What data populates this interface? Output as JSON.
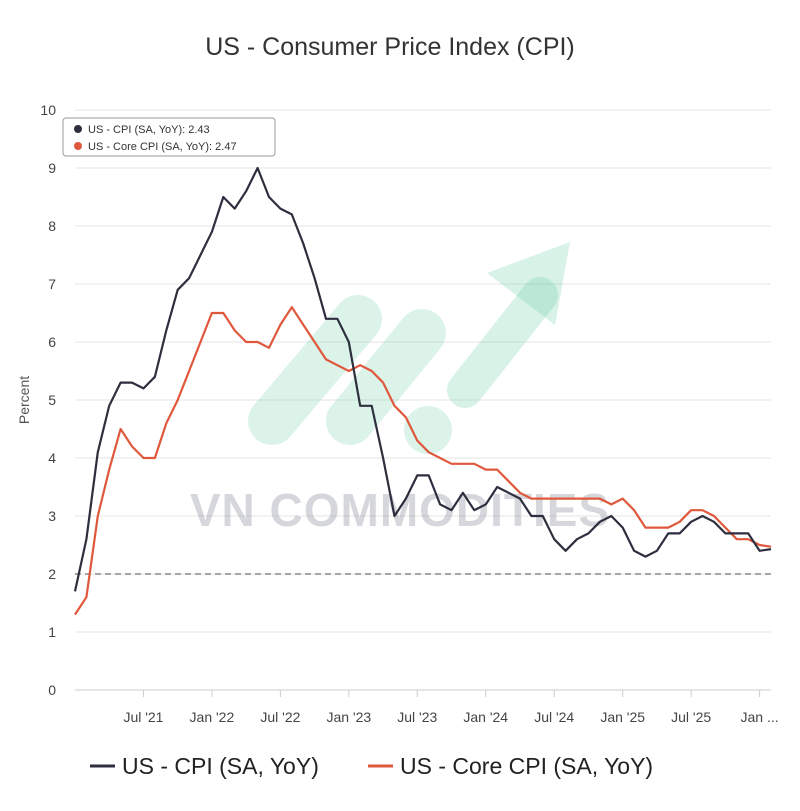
{
  "chart_data": {
    "type": "line",
    "title": "US - Consumer Price Index (CPI)",
    "xlabel": "",
    "ylabel": "Percent",
    "ylim": [
      0,
      10
    ],
    "yticks": [
      "0",
      "1",
      "2",
      "3",
      "4",
      "5",
      "6",
      "7",
      "8",
      "9",
      "10"
    ],
    "xticks": [
      "Jul '21",
      "Jan '22",
      "Jul '22",
      "Jan '23",
      "Jul '23",
      "Jan '24",
      "Jul '24",
      "Jan '25",
      "Jul '25",
      "Jan ..."
    ],
    "xtick_index": [
      6,
      12,
      18,
      24,
      30,
      36,
      42,
      48,
      54,
      60
    ],
    "reference_line": {
      "value": 2,
      "style": "dashed"
    },
    "x": [
      "Jan '21",
      "Feb '21",
      "Mar '21",
      "Apr '21",
      "May '21",
      "Jun '21",
      "Jul '21",
      "Aug '21",
      "Sep '21",
      "Oct '21",
      "Nov '21",
      "Dec '21",
      "Jan '22",
      "Feb '22",
      "Mar '22",
      "Apr '22",
      "May '22",
      "Jun '22",
      "Jul '22",
      "Aug '22",
      "Sep '22",
      "Oct '22",
      "Nov '22",
      "Dec '22",
      "Jan '23",
      "Feb '23",
      "Mar '23",
      "Apr '23",
      "May '23",
      "Jun '23",
      "Jul '23",
      "Aug '23",
      "Sep '23",
      "Oct '23",
      "Nov '23",
      "Dec '23",
      "Jan '24",
      "Feb '24",
      "Mar '24",
      "Apr '24",
      "May '24",
      "Jun '24",
      "Jul '24",
      "Aug '24",
      "Sep '24",
      "Oct '24",
      "Nov '24",
      "Dec '24",
      "Jan '25",
      "Feb '25",
      "Mar '25",
      "Apr '25",
      "May '25",
      "Jun '25",
      "Jul '25",
      "Aug '25",
      "Sep '25",
      "Oct '25",
      "Nov '25",
      "Dec '25",
      "Jan '26",
      "Feb '26"
    ],
    "series": [
      {
        "name": "US - CPI (SA, YoY)",
        "color": "#2d2f3e",
        "values": [
          1.7,
          2.6,
          4.1,
          4.9,
          5.3,
          5.3,
          5.2,
          5.4,
          6.2,
          6.9,
          7.1,
          7.5,
          7.9,
          8.5,
          8.3,
          8.6,
          9.0,
          8.5,
          8.3,
          8.2,
          7.7,
          7.1,
          6.4,
          6.4,
          6.0,
          4.9,
          4.9,
          4.0,
          3.0,
          3.3,
          3.7,
          3.7,
          3.2,
          3.1,
          3.4,
          3.1,
          3.2,
          3.5,
          3.4,
          3.3,
          3.0,
          3.0,
          2.6,
          2.4,
          2.6,
          2.7,
          2.9,
          3.0,
          2.8,
          2.4,
          2.3,
          2.4,
          2.7,
          2.7,
          2.9,
          3.0,
          2.9,
          2.7,
          2.7,
          2.7,
          2.4,
          2.43
        ]
      },
      {
        "name": "US - Core CPI (SA, YoY)",
        "color": "#e0583c",
        "values": [
          1.3,
          1.6,
          3.0,
          3.8,
          4.5,
          4.2,
          4.0,
          4.0,
          4.6,
          5.0,
          5.5,
          6.0,
          6.5,
          6.5,
          6.2,
          6.0,
          6.0,
          5.9,
          6.3,
          6.6,
          6.3,
          6.0,
          5.7,
          5.6,
          5.5,
          5.6,
          5.5,
          5.3,
          4.9,
          4.7,
          4.3,
          4.1,
          4.0,
          3.9,
          3.9,
          3.9,
          3.8,
          3.8,
          3.6,
          3.4,
          3.3,
          3.3,
          3.3,
          3.3,
          3.3,
          3.3,
          3.3,
          3.2,
          3.3,
          3.1,
          2.8,
          2.8,
          2.8,
          2.9,
          3.1,
          3.1,
          3.0,
          2.8,
          2.6,
          2.6,
          2.5,
          2.47
        ]
      }
    ],
    "tooltip": [
      {
        "label": "US - CPI (SA, YoY): 2.43",
        "color": "#2d2f3e"
      },
      {
        "label": "US - Core CPI (SA, YoY): 2.47",
        "color": "#e0583c"
      }
    ],
    "legend": [
      "US - CPI (SA, YoY)",
      "US - Core CPI (SA, YoY)"
    ],
    "legend_position": "bottom",
    "grid": true
  },
  "watermark": {
    "text": "VN COMMODITIES",
    "color": "#6b6f86",
    "accent": "#5bc99c"
  }
}
